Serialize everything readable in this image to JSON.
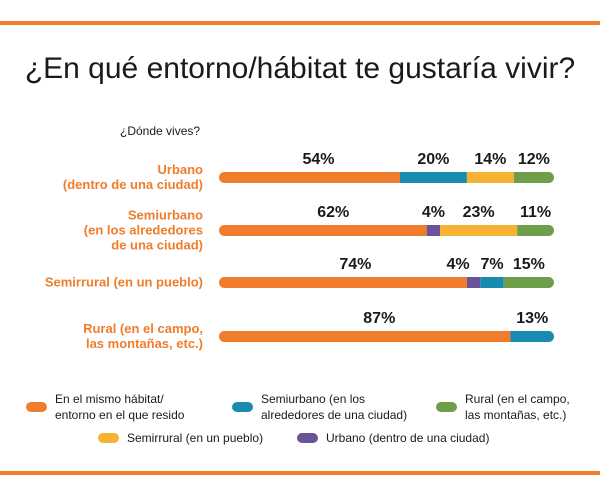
{
  "title": "¿En qué entorno/hábitat te gustaría vivir?",
  "colors": {
    "rule": "#ef7d2b",
    "label": "#ef7d2b",
    "text": "#1a1a1a"
  },
  "chart_data": {
    "type": "bar",
    "orientation": "horizontal",
    "stacked": true,
    "title": "¿En qué entorno/hábitat te gustaría vivir?",
    "subtitle": "¿Dónde vives?",
    "categories": [
      [
        "Urbano",
        "(dentro de una ciudad)"
      ],
      [
        "Semiurbano",
        "(en los alrededores",
        "de una ciudad)"
      ],
      [
        "Semirrural (en un pueblo)"
      ],
      [
        "Rural (en el campo,",
        "las montañas, etc.)"
      ]
    ],
    "series": [
      {
        "name": "En el mismo hábitat/ entorno en el que resido",
        "legend_lines": [
          "En el mismo hábitat/",
          "entorno en el que resido"
        ],
        "color": "#ef7d2b",
        "values": [
          54,
          62,
          74,
          87
        ]
      },
      {
        "name": "Urbano (dentro de una ciudad)",
        "legend_lines": [
          "Urbano (dentro de una ciudad)"
        ],
        "color": "#6a5499",
        "values": [
          0,
          4,
          4,
          0
        ]
      },
      {
        "name": "Semiurbano (en los alrededores de una ciudad)",
        "legend_lines": [
          "Semiurbano (en los",
          "alrededores de una ciudad)"
        ],
        "color": "#1a8bb0",
        "values": [
          20,
          0,
          7,
          13
        ]
      },
      {
        "name": "Semirrural (en un pueblo)",
        "legend_lines": [
          "Semirrural (en un pueblo)"
        ],
        "color": "#f6b232",
        "values": [
          14,
          23,
          0,
          0
        ]
      },
      {
        "name": "Rural (en el campo, las montañas, etc.)",
        "legend_lines": [
          "Rural (en el campo,",
          "las montañas, etc.)"
        ],
        "color": "#6f9e4a",
        "values": [
          12,
          11,
          15,
          0
        ]
      }
    ],
    "segment_order": [
      [
        "En el mismo hábitat/ entorno en el que resido",
        "Semiurbano (en los alrededores de una ciudad)",
        "Semirrural (en un pueblo)",
        "Rural (en el campo, las montañas, etc.)"
      ],
      [
        "En el mismo hábitat/ entorno en el que resido",
        "Urbano (dentro de una ciudad)",
        "Semirrural (en un pueblo)",
        "Rural (en el campo, las montañas, etc.)"
      ],
      [
        "En el mismo hábitat/ entorno en el que resido",
        "Urbano (dentro de una ciudad)",
        "Semiurbano (en los alrededores de una ciudad)",
        "Rural (en el campo, las montañas, etc.)"
      ],
      [
        "En el mismo hábitat/ entorno en el que resido",
        "Semiurbano (en los alrededores de una ciudad)"
      ]
    ],
    "value_labels": [
      [
        "54%",
        "20%",
        "14%",
        "12%"
      ],
      [
        "62%",
        "4%",
        "23%",
        "11%"
      ],
      [
        "74%",
        "4%",
        "7%",
        "15%"
      ],
      [
        "87%",
        "13%"
      ]
    ],
    "legend_position": "bottom",
    "legend_order": [
      "En el mismo hábitat/ entorno en el que resido",
      "Semiurbano (en los alrededores de una ciudad)",
      "Rural (en el campo, las montañas, etc.)",
      "Semirrural (en un pueblo)",
      "Urbano (dentro de una ciudad)"
    ],
    "xlim": [
      0,
      100
    ],
    "grid": false
  }
}
